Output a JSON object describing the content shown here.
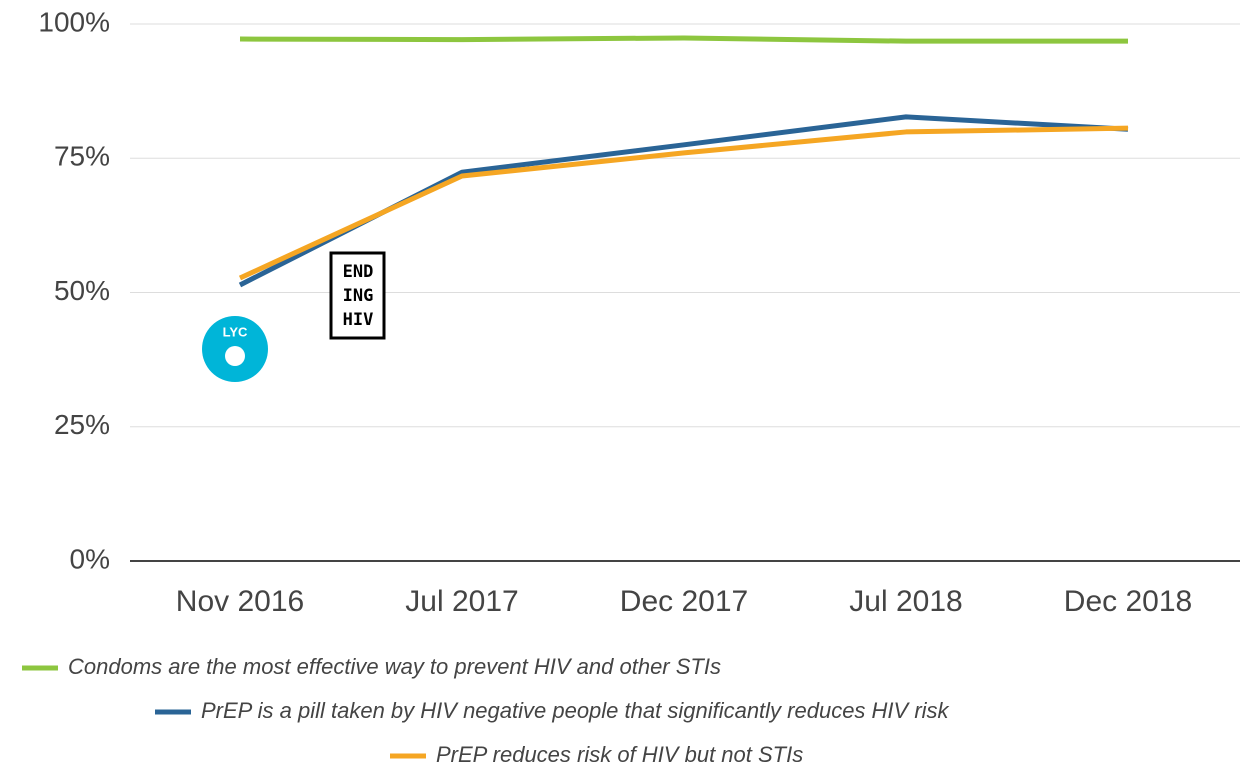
{
  "chart_data": {
    "type": "line",
    "categories": [
      "Nov 2016",
      "Jul 2017",
      "Dec 2017",
      "Jul 2018",
      "Dec 2018"
    ],
    "series": [
      {
        "name": "Condoms are the most effective way to prevent HIV and other STIs",
        "color": "#8dc63f",
        "values": [
          97.2,
          97.1,
          97.4,
          96.8,
          96.8
        ]
      },
      {
        "name": "PrEP is a pill taken by HIV negative people that significantly reduces HIV risk",
        "color": "#2a6496",
        "values": [
          51.4,
          72.4,
          77.5,
          82.7,
          80.4
        ]
      },
      {
        "name": "PrEP reduces risk of HIV but not STIs",
        "color": "#f5a623",
        "values": [
          52.7,
          71.7,
          76.0,
          79.9,
          80.6
        ]
      }
    ],
    "ylim": [
      0,
      100
    ],
    "yticks": [
      {
        "value": 0,
        "label": "0%"
      },
      {
        "value": 25,
        "label": "25%"
      },
      {
        "value": 50,
        "label": "50%"
      },
      {
        "value": 75,
        "label": "75%"
      },
      {
        "value": 100,
        "label": "100%"
      }
    ],
    "grid": true,
    "logos": {
      "lyc": "LYC",
      "ending_hiv": [
        "END",
        "ING",
        "HIV"
      ]
    }
  }
}
